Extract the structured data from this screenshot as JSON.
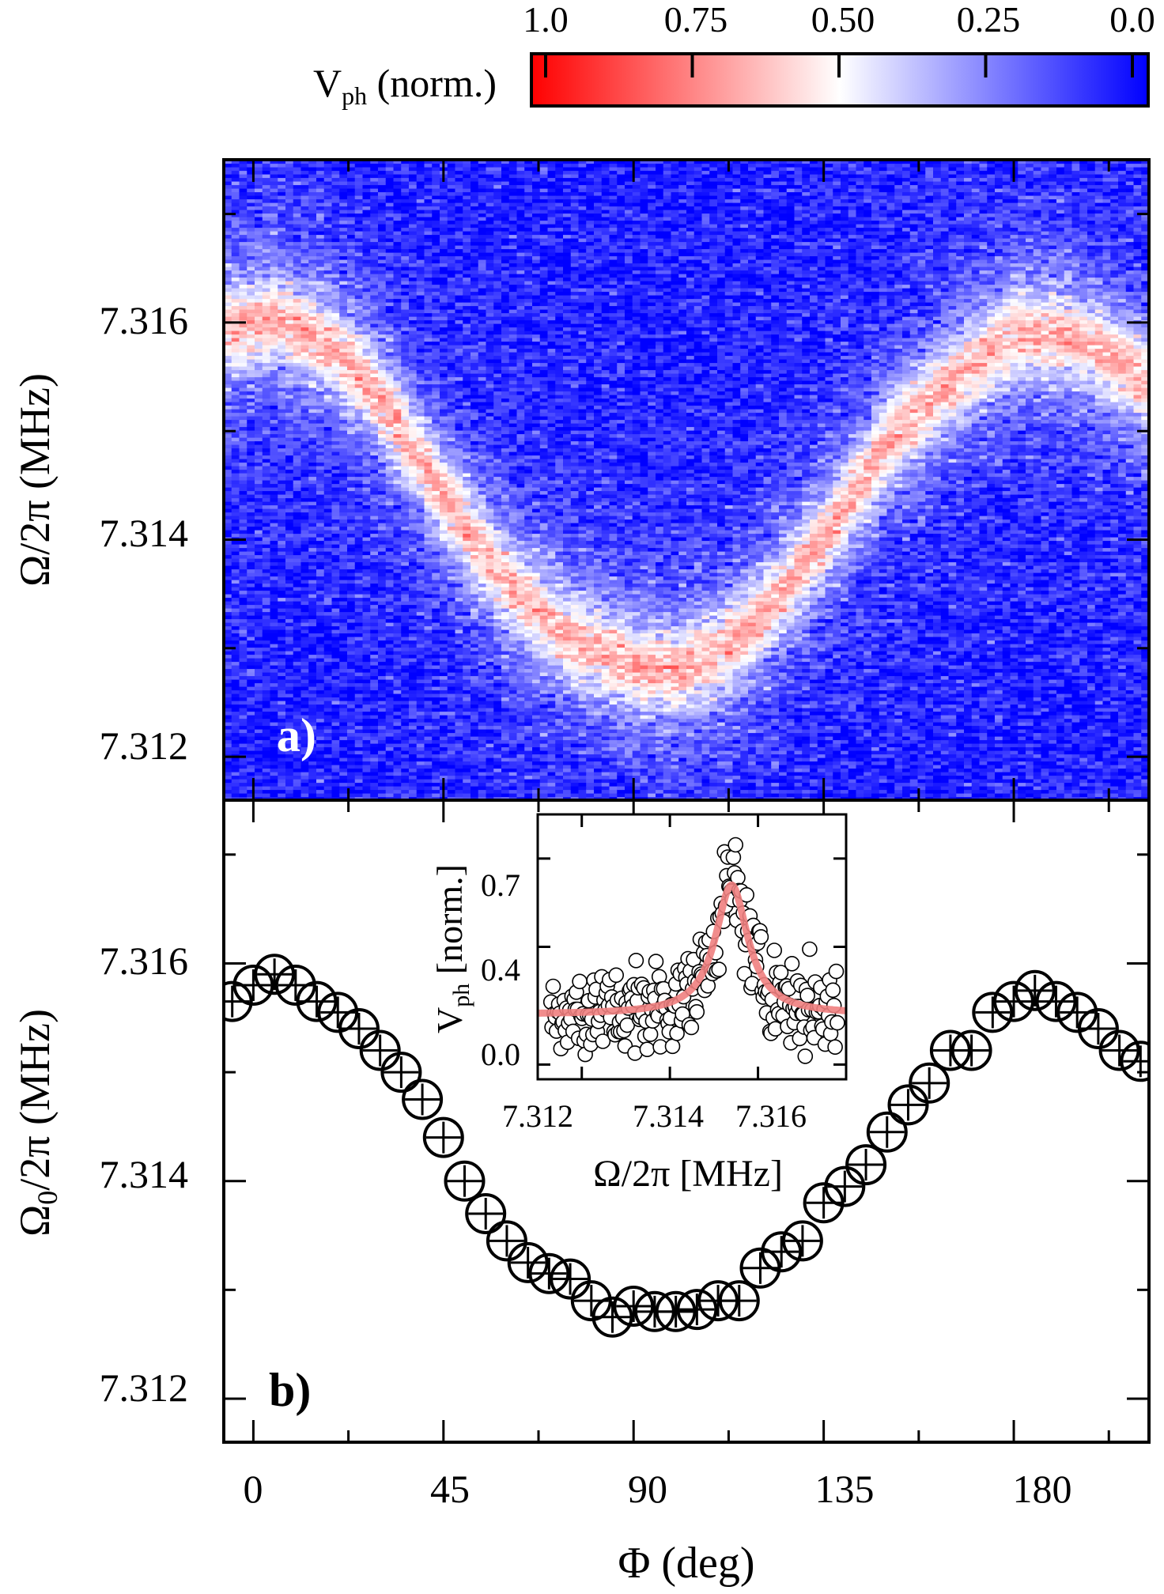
{
  "colorbar": {
    "label_main": "V",
    "label_sub": "ph",
    "label_rest": " (norm.)",
    "ticks": [
      "1.0",
      "0.75",
      "0.50",
      "0.25",
      "0.0"
    ],
    "colors": {
      "high": "#ff0000",
      "mid": "#ffffff",
      "low": "#0000ff"
    }
  },
  "chart_data": [
    {
      "panel_label": "a)",
      "type": "heatmap",
      "xlabel": "",
      "ylabel_main": "Ω/2π",
      "ylabel_unit": " (MHz)",
      "xlim": [
        -7,
        212
      ],
      "ylim": [
        7.3116,
        7.3175
      ],
      "yticks": [
        "7.312",
        "7.314",
        "7.316"
      ],
      "background_level": 0.06,
      "ridge": {
        "phi": [
          -7,
          0,
          5,
          10,
          20,
          30,
          45,
          60,
          75,
          90,
          100,
          110,
          120,
          135,
          150,
          165,
          180,
          190,
          200,
          212
        ],
        "center_MHz": [
          7.31595,
          7.316,
          7.31605,
          7.31595,
          7.31575,
          7.3153,
          7.3144,
          7.3136,
          7.3131,
          7.31285,
          7.3128,
          7.31295,
          7.3133,
          7.314,
          7.3149,
          7.31545,
          7.3159,
          7.3159,
          7.31575,
          7.31545
        ],
        "amplitude": 0.6,
        "width_MHz": 0.0004
      }
    },
    {
      "panel_label": "b)",
      "type": "scatter",
      "xlabel_main": "Φ",
      "xlabel_unit": " (deg)",
      "ylabel_main": "Ω",
      "ylabel_sub": "0",
      "ylabel_unit": "/2π (MHz)",
      "xlim": [
        -7,
        212
      ],
      "ylim": [
        7.3116,
        7.3175
      ],
      "xticks": [
        "0",
        "45",
        "90",
        "135",
        "180"
      ],
      "yticks": [
        "7.312",
        "7.314",
        "7.316"
      ],
      "x": [
        -5,
        0,
        5,
        10,
        15,
        20,
        25,
        30,
        35,
        40,
        45,
        50,
        55,
        60,
        65,
        70,
        75,
        80,
        85,
        90,
        95,
        100,
        105,
        110,
        115,
        120,
        125,
        130,
        135,
        140,
        145,
        150,
        155,
        160,
        165,
        170,
        175,
        180,
        185,
        190,
        195,
        200,
        205,
        210
      ],
      "y": [
        7.31565,
        7.3158,
        7.3159,
        7.3158,
        7.31565,
        7.31555,
        7.3154,
        7.3152,
        7.315,
        7.31475,
        7.3144,
        7.314,
        7.3137,
        7.31345,
        7.31325,
        7.31315,
        7.3131,
        7.3129,
        7.31275,
        7.31285,
        7.3128,
        7.3128,
        7.31282,
        7.3129,
        7.3129,
        7.3132,
        7.31335,
        7.31345,
        7.3138,
        7.31395,
        7.31415,
        7.31445,
        7.3147,
        7.3149,
        7.3152,
        7.3152,
        7.31555,
        7.31565,
        7.31575,
        7.31565,
        7.31555,
        7.3154,
        7.3152,
        7.3151
      ]
    },
    {
      "panel_label": "inset",
      "type": "scatter",
      "xlabel_main": "Ω/2π",
      "xlabel_unit": " [MHz]",
      "ylabel_main": "V",
      "ylabel_sub": "ph",
      "ylabel_unit": " [norm.]",
      "xlim": [
        7.311,
        7.318
      ],
      "ylim": [
        -0.05,
        0.85
      ],
      "xticks": [
        "7.312",
        "7.314",
        "7.316"
      ],
      "yticks": [
        "0.0",
        "0.4",
        "0.7"
      ],
      "fit": {
        "type": "lorentzian",
        "center": 7.3154,
        "amplitude": 0.44,
        "offset": 0.17,
        "hwhm": 0.00045,
        "color": "#f08080"
      },
      "points_summary": {
        "count": 260,
        "noise_std": 0.075,
        "peak_max": 0.8
      }
    }
  ]
}
